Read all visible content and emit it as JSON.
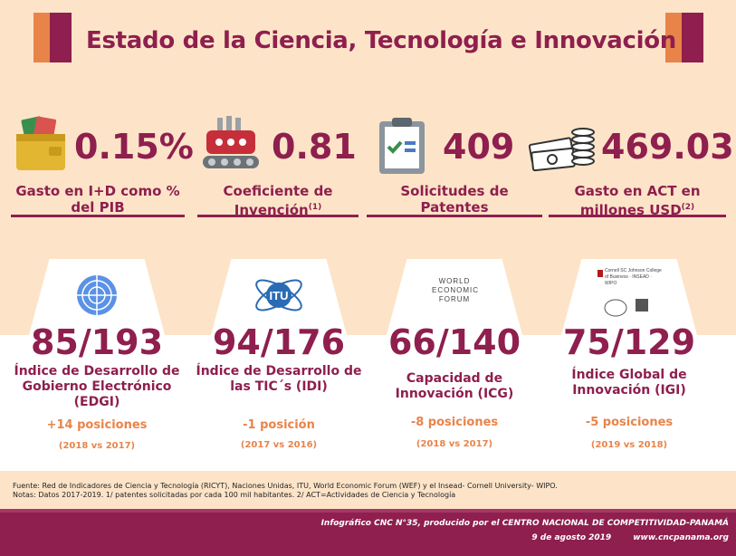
{
  "title": "Estado de la Ciencia, Tecnología e Innovación",
  "stats": [
    {
      "value": "0.15%",
      "label": "Gasto en I+D como % del PIB",
      "sup": "",
      "icon": "money-wallet-icon"
    },
    {
      "value": "0.81",
      "label": "Coeficiente de Invención",
      "sup": "(1)",
      "icon": "factory-icon"
    },
    {
      "value": "409",
      "label": "Solicitudes de Patentes",
      "sup": "",
      "icon": "clipboard-checklist-icon"
    },
    {
      "value": "469.03",
      "label": "Gasto en ACT en millones USD",
      "sup": "(2)",
      "icon": "money-coins-icon"
    }
  ],
  "cards": [
    {
      "rank": "85/193",
      "name": "Índice de Desarrollo de Gobierno Electrónico (EDGI)",
      "change": "+14 posiciones",
      "period": "(2018 vs 2017)",
      "logo": "un-logo-icon"
    },
    {
      "rank": "94/176",
      "name": "Índice de Desarrollo de las TIC´s (IDI)",
      "change": "-1 posición",
      "period": "(2017 vs 2016)",
      "logo": "itu-logo-icon",
      "logo_text": "ITU"
    },
    {
      "rank": "66/140",
      "name": "Capacidad de Innovación (ICG)",
      "change": "-8 posiciones",
      "period": "(2018 vs 2017)",
      "logo": "wef-logo-icon",
      "logo_text": "WORLD ECONOMIC FORUM"
    },
    {
      "rank": "75/129",
      "name": "Índice Global de Innovación (IGI)",
      "change": "-5 posiciones",
      "period": "(2019 vs 2018)",
      "logo": "insead-cornell-wipo-logo-icon",
      "logo_text": "Cornell SC Johnson College of Business · INSEAD · WIPO"
    }
  ],
  "footnotes": {
    "source": "Fuente: Red de Indicadores de Ciencia y Tecnología (RICYT), Naciones Unidas, ITU, World Economic Forum (WEF) y el  Insead- Cornell University- WIPO.",
    "notes": "Notas:  Datos 2017-2019. 1/ patentes solicitadas por cada 100 mil habitantes.   2/ ACT=Actividades de Ciencia y Tecnología"
  },
  "footer": {
    "line1": "Infográfico CNC N°35, producido por el CENTRO NACIONAL DE COMPETITIVIDAD-PANAMÁ",
    "date": "9 de agosto 2019",
    "url": "www.cncpanama.org"
  },
  "colors": {
    "maroon": "#8e1f4e",
    "orange": "#e8844a",
    "background": "#fde4c8"
  }
}
